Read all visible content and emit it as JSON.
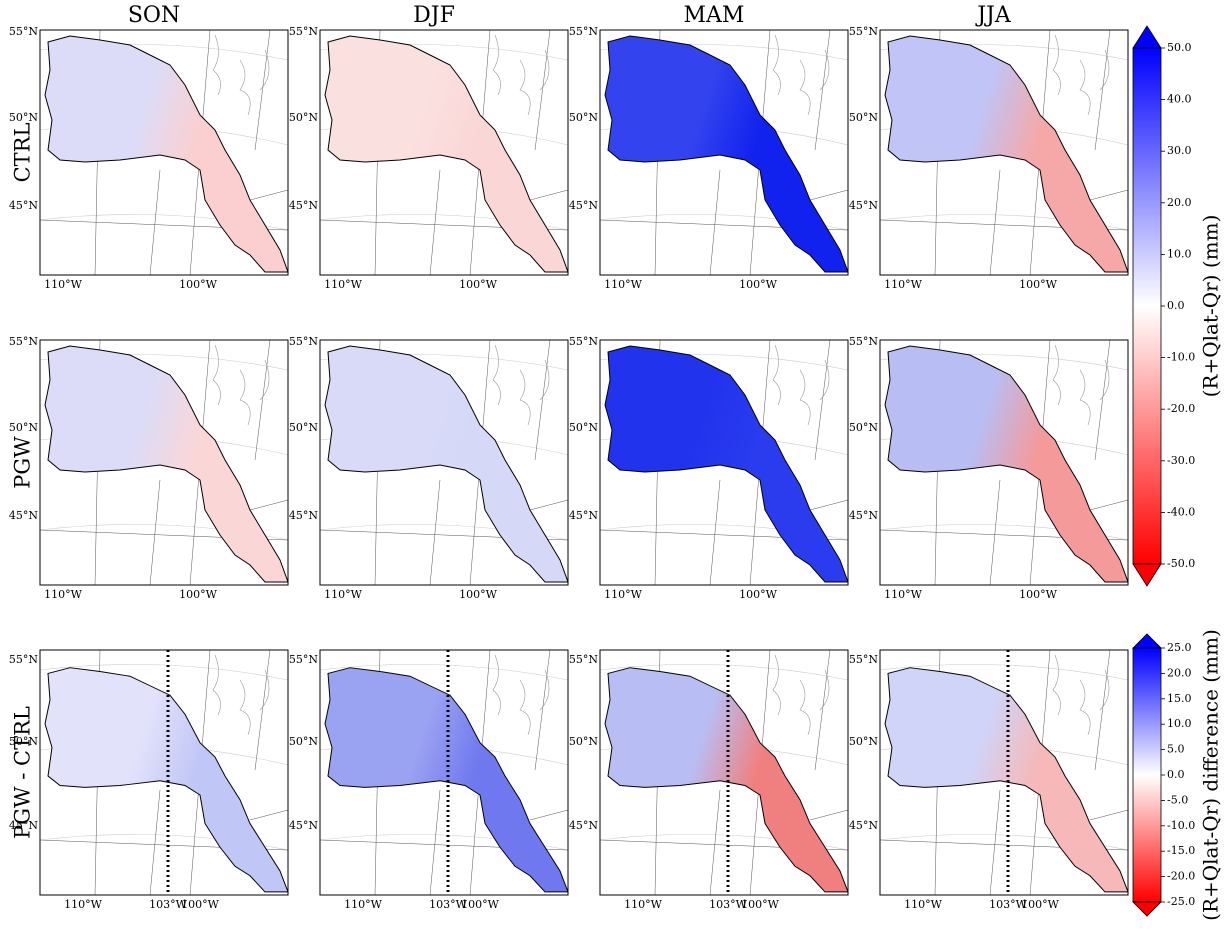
{
  "columns": [
    "SON",
    "DJF",
    "MAM",
    "JJA"
  ],
  "rows": [
    "CTRL",
    "PGW",
    "PGW - CTRL"
  ],
  "lat_labels": [
    "55°N",
    "50°N",
    "45°N"
  ],
  "lon_labels": [
    "110°W",
    "103°W",
    "100°W"
  ],
  "panel_fills": [
    [
      [
        "#dcdcf8",
        "#fbcfcf"
      ],
      [
        "#fbe0e0",
        "#fbd6d6"
      ],
      [
        "#3344ee",
        "#1122ee"
      ],
      [
        "#c0c4f6",
        "#f6a8a8"
      ]
    ],
    [
      [
        "#dcdcf8",
        "#fbd6d6"
      ],
      [
        "#d8daf8",
        "#d6d8f8"
      ],
      [
        "#2233ee",
        "#2a3cee"
      ],
      [
        "#b8bef4",
        "#f49a9a"
      ]
    ],
    [
      [
        "#e2e2fa",
        "#c0c6f6"
      ],
      [
        "#9aa2f2",
        "#6f78ee"
      ],
      [
        "#b8bef4",
        "#f08080"
      ],
      [
        "#d0d4f8",
        "#f6b8b8"
      ]
    ]
  ],
  "colorbars": [
    {
      "label": "(R+Qlat-Qr) (mm)",
      "ticks": [
        {
          "value": 50,
          "label": "50.0"
        },
        {
          "value": 40,
          "label": "40.0"
        },
        {
          "value": 30,
          "label": "30.0"
        },
        {
          "value": 20,
          "label": "20.0"
        },
        {
          "value": 10,
          "label": "10.0"
        },
        {
          "value": 0,
          "label": "0.0"
        },
        {
          "value": -10,
          "label": "-10.0"
        },
        {
          "value": -20,
          "label": "-20.0"
        },
        {
          "value": -30,
          "label": "-30.0"
        },
        {
          "value": -40,
          "label": "-40.0"
        },
        {
          "value": -50,
          "label": "-50.0"
        }
      ]
    },
    {
      "label": "(R+Qlat-Qr) difference (mm)",
      "ticks": [
        {
          "value": 25,
          "label": "25.0"
        },
        {
          "value": 20,
          "label": "20.0"
        },
        {
          "value": 15,
          "label": "15.0"
        },
        {
          "value": 10,
          "label": "10.0"
        },
        {
          "value": 5,
          "label": "5.0"
        },
        {
          "value": 0,
          "label": "0.0"
        },
        {
          "value": -5,
          "label": "-5.0"
        },
        {
          "value": -10,
          "label": "-10.0"
        },
        {
          "value": -15,
          "label": "-15.0"
        },
        {
          "value": -20,
          "label": "-20.0"
        },
        {
          "value": -25,
          "label": "-25.0"
        }
      ]
    }
  ]
}
